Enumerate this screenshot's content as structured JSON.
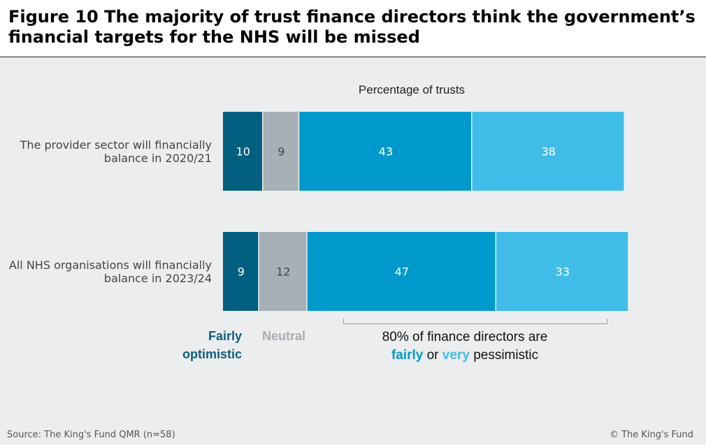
{
  "title": "Figure 10 The majority of trust finance directors think the government’s financial targets for the NHS will be missed",
  "source": "Source: The King's Fund QMR (n=58)",
  "copyright": "© The King's Fund",
  "colors": {
    "fairly_optimistic": "#035f7f",
    "neutral": "#a7b0b6",
    "fairly_pessimistic": "#0099cc",
    "very_pessimistic": "#3fbde8"
  },
  "chart_data": {
    "type": "bar",
    "orientation": "horizontal",
    "stacked": true,
    "xlabel": "Percentage of trusts",
    "xlim": [
      0,
      100
    ],
    "categories": [
      "The provider sector will financially balance in 2020/21",
      "All NHS organisations will financially balance in 2023/24"
    ],
    "category_lines": [
      [
        "The provider sector will financially",
        "balance in 2020/21"
      ],
      [
        "All NHS organisations will financially",
        "balance in 2023/24"
      ]
    ],
    "series": [
      {
        "key": "fairly_optimistic",
        "values": [
          10,
          9
        ]
      },
      {
        "key": "neutral",
        "values": [
          9,
          12
        ]
      },
      {
        "key": "fairly_pessimistic",
        "values": [
          43,
          47
        ]
      },
      {
        "key": "very_pessimistic",
        "values": [
          38,
          33
        ]
      }
    ],
    "grid": false,
    "legend": {
      "fairly_optimistic": "Fairly optimistic",
      "fairly_optimistic_lines": [
        "Fairly",
        "optimistic"
      ],
      "neutral": "Neutral"
    },
    "annotation": {
      "line1": "80% of finance directors are",
      "fairly": "fairly",
      "or": "or",
      "very": "very",
      "pessimistic": "pessimistic"
    }
  }
}
